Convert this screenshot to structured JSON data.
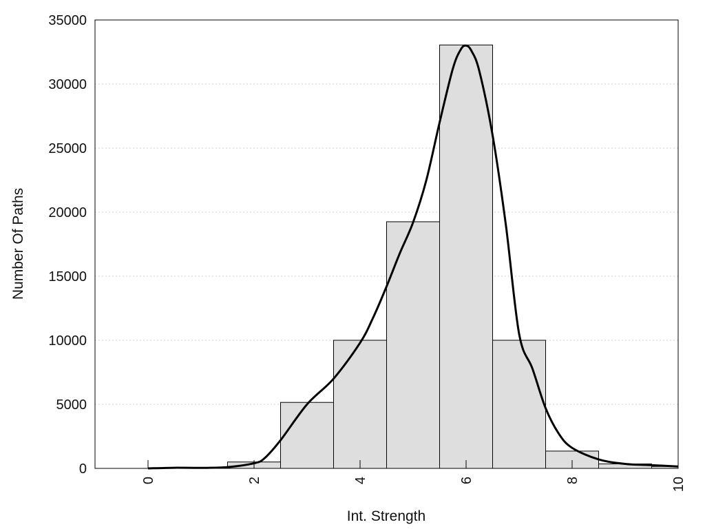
{
  "chart_data": {
    "type": "bar",
    "xlabel": "Int. Strength",
    "ylabel": "Number Of Paths",
    "xlim": [
      -1,
      10
    ],
    "ylim": [
      0,
      35000
    ],
    "x_ticks": [
      0,
      2,
      4,
      6,
      8,
      10
    ],
    "x_tick_labels": [
      "0",
      "2",
      "4",
      "6",
      "8",
      "10"
    ],
    "y_ticks": [
      0,
      5000,
      10000,
      15000,
      20000,
      25000,
      30000,
      35000
    ],
    "y_tick_labels": [
      "0",
      "5000",
      "10000",
      "15000",
      "20000",
      "25000",
      "30000",
      "35000"
    ],
    "grid": "horizontal dotted",
    "bars": [
      {
        "x": 0,
        "value": 0
      },
      {
        "x": 1,
        "value": 0
      },
      {
        "x": 2,
        "value": 500
      },
      {
        "x": 3,
        "value": 5150
      },
      {
        "x": 4,
        "value": 10000
      },
      {
        "x": 5,
        "value": 19250
      },
      {
        "x": 6,
        "value": 33050
      },
      {
        "x": 7,
        "value": 10000
      },
      {
        "x": 8,
        "value": 1350
      },
      {
        "x": 9,
        "value": 350
      },
      {
        "x": 10,
        "value": 150
      }
    ],
    "density_curve": {
      "x": [
        0,
        0.5,
        1,
        1.5,
        2,
        2.2,
        2.5,
        3,
        3.5,
        4,
        4.25,
        4.5,
        4.75,
        5,
        5.25,
        5.5,
        5.75,
        5.9,
        6,
        6.1,
        6.25,
        6.5,
        6.75,
        7,
        7.25,
        7.5,
        7.75,
        8,
        8.5,
        9,
        9.5,
        10
      ],
      "y": [
        0,
        50,
        40,
        100,
        400,
        800,
        2200,
        5000,
        7000,
        9800,
        11800,
        14200,
        16800,
        19200,
        22500,
        27000,
        31200,
        32700,
        33000,
        32600,
        31000,
        26000,
        19000,
        10500,
        7800,
        4700,
        2700,
        1600,
        700,
        350,
        250,
        150
      ]
    },
    "bar_fill": "#dedede",
    "bar_stroke": "#000000",
    "line_color": "#000000"
  }
}
